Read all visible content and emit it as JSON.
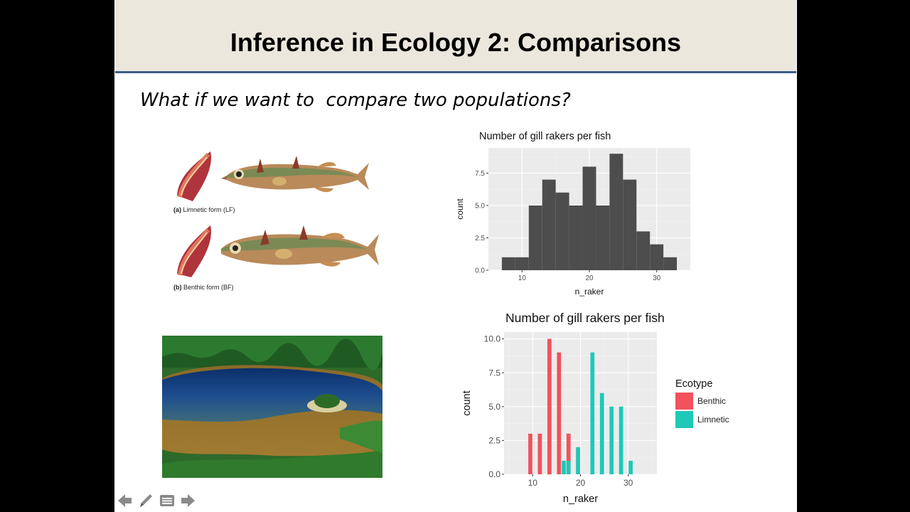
{
  "slide": {
    "title": "Inference in Ecology 2: Comparisons",
    "subtitle": "What if we want to  compare two populations?"
  },
  "fish_figure": {
    "caption_a_letter": "(a)",
    "caption_a_text": " Limnetic form (LF)",
    "caption_b_letter": "(b)",
    "caption_b_text": " Benthic form (BF)"
  },
  "icons": [
    "back-arrow-icon",
    "pen-icon",
    "notes-icon",
    "forward-arrow-icon"
  ],
  "colors": {
    "title_bar": "#ebe7dd",
    "title_border": "#3d5b86",
    "hist_bar": "#4d4d4d",
    "benthic": "#f1525c",
    "limnetic": "#1ec9b8",
    "panel_bg": "#ebebeb"
  },
  "chart_data": [
    {
      "type": "bar",
      "title": "Number of gill rakers per fish",
      "xlabel": "n_raker",
      "ylabel": "count",
      "xlim": [
        5,
        35
      ],
      "ylim": [
        0,
        9.45
      ],
      "x_ticks": [
        10,
        20,
        30
      ],
      "y_ticks": [
        0.0,
        2.5,
        5.0,
        7.5
      ],
      "y_tick_labels": [
        "0.0",
        "2.5",
        "5.0",
        "7.5"
      ],
      "bin_starts": [
        7,
        9,
        11,
        13,
        15,
        17,
        19,
        21,
        23,
        25,
        27,
        29,
        31
      ],
      "bin_width": 2,
      "values": [
        1,
        1,
        5,
        7,
        6,
        5,
        8,
        5,
        9,
        7,
        3,
        2,
        1
      ],
      "grid": true
    },
    {
      "type": "bar",
      "title": "Number of gill rakers per fish",
      "xlabel": "n_raker",
      "ylabel": "count",
      "xlim": [
        4,
        36
      ],
      "ylim": [
        0,
        10.5
      ],
      "x_ticks": [
        10,
        20,
        30
      ],
      "y_ticks": [
        0.0,
        2.5,
        5.0,
        7.5,
        10.0
      ],
      "y_tick_labels": [
        "0.0",
        "2.5",
        "5.0",
        "7.5",
        "10.0"
      ],
      "legend_title": "Ecotype",
      "legend_position": "right",
      "bin_width": 1,
      "series": [
        {
          "name": "Benthic",
          "color": "#f1525c",
          "x": [
            9.5,
            11.5,
            13.5,
            15.5,
            17.5,
            19.5
          ],
          "values": [
            3,
            3,
            10,
            9,
            3,
            2
          ]
        },
        {
          "name": "Limnetic",
          "color": "#1ec9b8",
          "x": [
            16.5,
            17.5,
            19.5,
            22.5,
            24.5,
            26.5,
            28.5,
            30.5
          ],
          "values": [
            1,
            1,
            2,
            9,
            6,
            5,
            5,
            1
          ]
        }
      ],
      "grid": true
    }
  ]
}
